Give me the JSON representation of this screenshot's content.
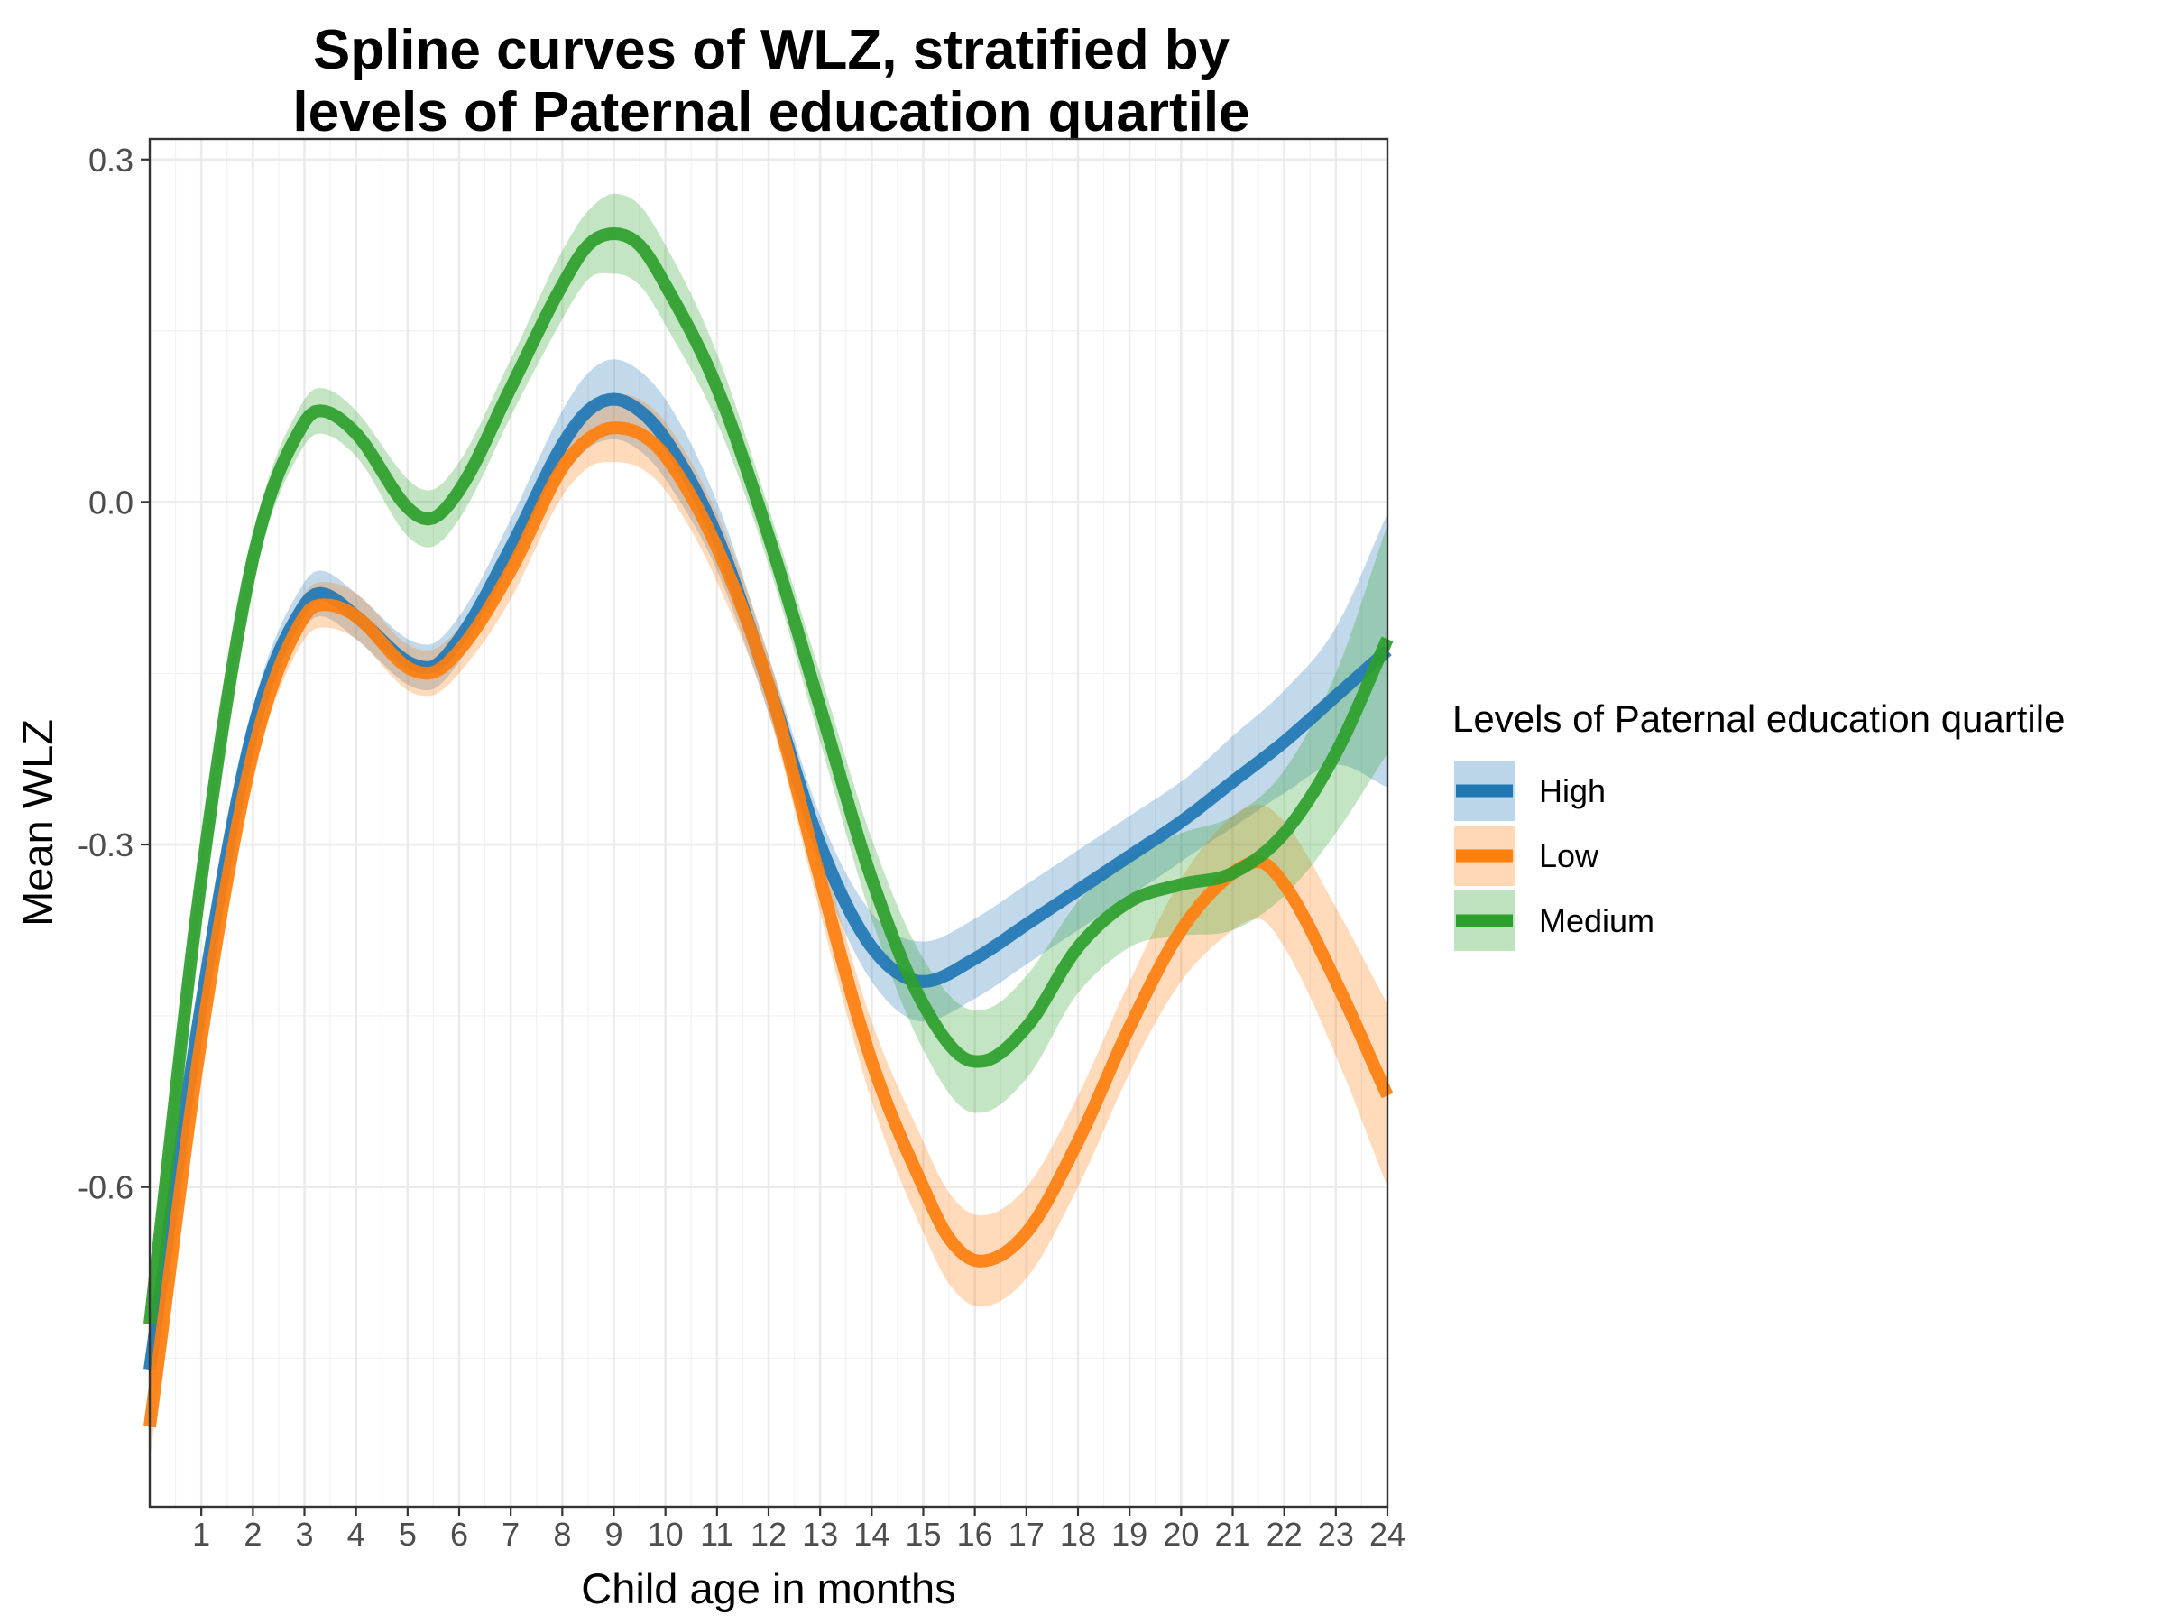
{
  "chart_data": {
    "type": "line",
    "title_lines": [
      "Spline curves of WLZ, stratified by",
      "levels of Paternal education quartile"
    ],
    "xlabel": "Child age in months",
    "ylabel": "Mean WLZ",
    "xlim": [
      0,
      24
    ],
    "ylim": [
      -0.88,
      0.318
    ],
    "x_ticks": [
      1,
      2,
      3,
      4,
      5,
      6,
      7,
      8,
      9,
      10,
      11,
      12,
      13,
      14,
      15,
      16,
      17,
      18,
      19,
      20,
      21,
      22,
      23,
      24
    ],
    "y_ticks": [
      0.3,
      0.0,
      -0.3,
      -0.6
    ],
    "y_tick_labels": [
      "0.3",
      "0.0",
      "-0.3",
      "-0.6"
    ],
    "grid": true,
    "legend": {
      "title": "Levels of Paternal education quartile",
      "position": "right",
      "entries": [
        "High",
        "Low",
        "Medium"
      ]
    },
    "series": [
      {
        "name": "High",
        "color": "#1f77b4",
        "x": [
          0,
          1,
          2,
          3,
          3.3,
          4,
          5,
          5.4,
          6,
          7,
          8,
          8.5,
          9,
          9.5,
          10,
          11,
          12,
          13,
          14,
          15,
          16,
          17,
          18,
          19,
          20,
          21,
          22,
          23,
          24
        ],
        "y": [
          -0.76,
          -0.44,
          -0.2,
          -0.09,
          -0.08,
          -0.1,
          -0.14,
          -0.145,
          -0.12,
          -0.04,
          0.05,
          0.08,
          0.09,
          0.08,
          0.055,
          -0.03,
          -0.16,
          -0.3,
          -0.39,
          -0.42,
          -0.4,
          -0.37,
          -0.34,
          -0.31,
          -0.28,
          -0.245,
          -0.21,
          -0.17,
          -0.13
        ],
        "ci_halfwidth": [
          0.03,
          0.02,
          0.02,
          0.02,
          0.02,
          0.02,
          0.02,
          0.02,
          0.02,
          0.025,
          0.03,
          0.033,
          0.035,
          0.035,
          0.035,
          0.03,
          0.025,
          0.025,
          0.03,
          0.035,
          0.035,
          0.035,
          0.035,
          0.035,
          0.035,
          0.04,
          0.045,
          0.06,
          0.12
        ]
      },
      {
        "name": "Low",
        "color": "#ff7f0e",
        "x": [
          0,
          1,
          2,
          3,
          3.4,
          4,
          5,
          5.4,
          6,
          7,
          8,
          8.5,
          9,
          9.5,
          10,
          11,
          12,
          13,
          14,
          15,
          15.5,
          16.1,
          17,
          18,
          19,
          20,
          21,
          21.5,
          22,
          23,
          24
        ],
        "y": [
          -0.81,
          -0.47,
          -0.22,
          -0.1,
          -0.09,
          -0.1,
          -0.145,
          -0.15,
          -0.13,
          -0.06,
          0.03,
          0.055,
          0.065,
          0.06,
          0.04,
          -0.04,
          -0.16,
          -0.33,
          -0.49,
          -0.6,
          -0.645,
          -0.665,
          -0.64,
          -0.56,
          -0.46,
          -0.375,
          -0.325,
          -0.315,
          -0.335,
          -0.42,
          -0.52
        ],
        "ci_halfwidth": [
          0.03,
          0.02,
          0.02,
          0.02,
          0.02,
          0.02,
          0.02,
          0.02,
          0.02,
          0.025,
          0.025,
          0.025,
          0.03,
          0.03,
          0.03,
          0.03,
          0.025,
          0.03,
          0.035,
          0.04,
          0.04,
          0.04,
          0.04,
          0.04,
          0.04,
          0.045,
          0.05,
          0.05,
          0.055,
          0.065,
          0.08
        ]
      },
      {
        "name": "Medium",
        "color": "#2ca02c",
        "x": [
          0,
          1,
          2,
          3,
          3.3,
          4,
          5,
          5.4,
          6,
          7,
          8,
          8.5,
          9,
          9.5,
          10,
          11,
          12,
          13,
          14,
          15,
          16,
          16.1,
          17,
          18,
          19,
          20,
          21,
          22,
          23,
          24
        ],
        "y": [
          -0.72,
          -0.33,
          -0.05,
          0.07,
          0.08,
          0.06,
          -0.005,
          -0.015,
          0.01,
          0.1,
          0.19,
          0.225,
          0.235,
          0.225,
          0.19,
          0.1,
          -0.03,
          -0.18,
          -0.33,
          -0.44,
          -0.49,
          -0.49,
          -0.46,
          -0.39,
          -0.35,
          -0.335,
          -0.325,
          -0.29,
          -0.22,
          -0.12
        ],
        "ci_halfwidth": [
          0.04,
          0.025,
          0.02,
          0.02,
          0.02,
          0.02,
          0.025,
          0.025,
          0.025,
          0.025,
          0.03,
          0.03,
          0.035,
          0.035,
          0.035,
          0.03,
          0.025,
          0.03,
          0.035,
          0.04,
          0.045,
          0.045,
          0.045,
          0.04,
          0.04,
          0.045,
          0.05,
          0.055,
          0.07,
          0.1
        ]
      }
    ]
  }
}
